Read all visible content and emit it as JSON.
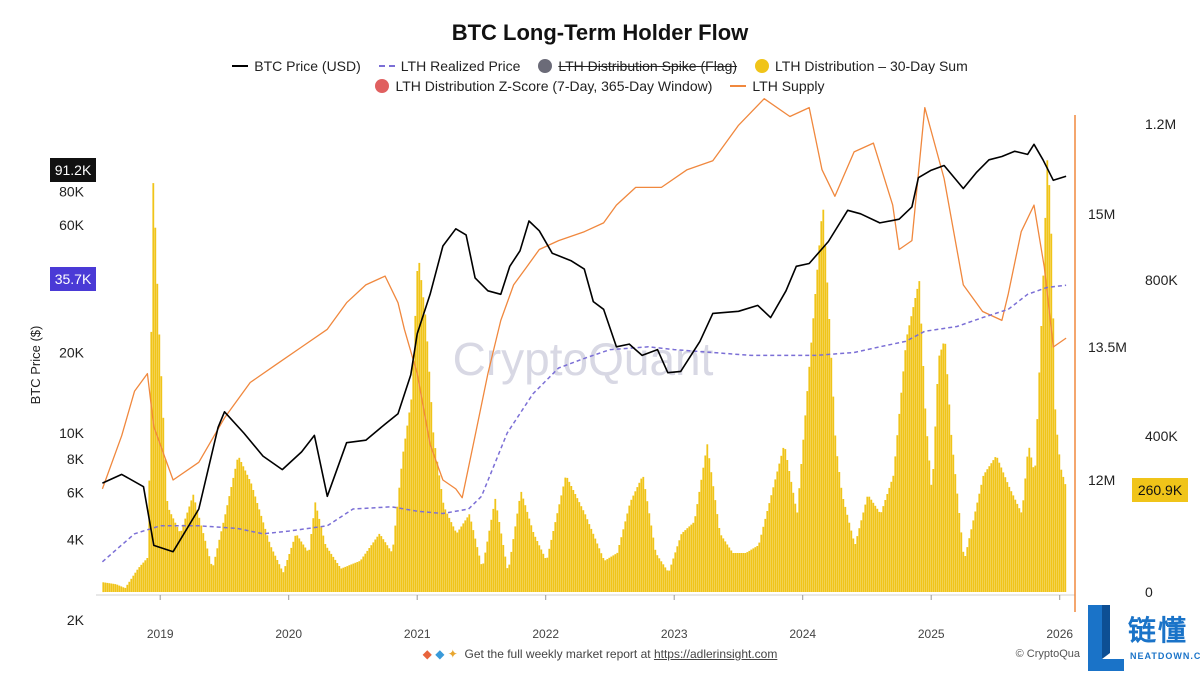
{
  "chart_data": {
    "type": "line",
    "title": "BTC Long-Term Holder Flow",
    "ylabel": "BTC Price ($)",
    "x_ticks": [
      "2019",
      "2020",
      "2021",
      "2022",
      "2023",
      "2024",
      "2025",
      "2026"
    ],
    "y_left_ticks": [
      "2K",
      "4K",
      "6K",
      "8K",
      "10K",
      "20K",
      "40K",
      "60K",
      "80K",
      "100K"
    ],
    "y_left_scale": "log",
    "y_left_range": [
      2000,
      130000
    ],
    "y_right_supply_ticks": [
      "12M",
      "13.5M",
      "15M"
    ],
    "y_right_supply_range": [
      11500000,
      16500000
    ],
    "y_right_flow_ticks": [
      "0",
      "400K",
      "800K",
      "1.2M"
    ],
    "y_right_flow_range": [
      0,
      1200000
    ],
    "x_range": [
      2018.5,
      2026.08
    ],
    "badges": {
      "price": "91.2K",
      "realized": "35.7K",
      "flow": "260.9K"
    },
    "watermark": "CryptoQuant",
    "legend": [
      {
        "label": "BTC Price (USD)",
        "style": "line",
        "color": "#000000",
        "struck": false
      },
      {
        "label": "LTH Realized Price",
        "style": "dashed",
        "color": "#7b6fd6",
        "struck": false
      },
      {
        "label": "LTH Distribution Spike (Flag)",
        "style": "dot",
        "color": "#6b6b78",
        "struck": true
      },
      {
        "label": "LTH Distribution – 30-Day Sum",
        "style": "dot",
        "color": "#f0c419",
        "struck": false
      },
      {
        "label": "LTH Distribution Z-Score (7-Day, 365-Day Window)",
        "style": "dot",
        "color": "#e06060",
        "struck": false
      },
      {
        "label": "LTH Supply",
        "style": "line",
        "color": "#f0883e",
        "struck": false
      }
    ],
    "series": [
      {
        "name": "BTC Price (USD)",
        "axis": "left",
        "color": "#000000",
        "x": [
          2018.55,
          2018.7,
          2018.87,
          2018.95,
          2019.1,
          2019.3,
          2019.45,
          2019.5,
          2019.65,
          2019.8,
          2019.95,
          2020.1,
          2020.2,
          2020.3,
          2020.45,
          2020.6,
          2020.75,
          2020.85,
          2020.95,
          2021.0,
          2021.1,
          2021.2,
          2021.3,
          2021.38,
          2021.45,
          2021.55,
          2021.65,
          2021.72,
          2021.8,
          2021.87,
          2021.95,
          2022.05,
          2022.2,
          2022.3,
          2022.37,
          2022.45,
          2022.55,
          2022.65,
          2022.75,
          2022.87,
          2022.95,
          2023.05,
          2023.2,
          2023.3,
          2023.5,
          2023.65,
          2023.75,
          2023.87,
          2023.95,
          2024.05,
          2024.2,
          2024.35,
          2024.45,
          2024.6,
          2024.75,
          2024.85,
          2024.9,
          2025.0,
          2025.1,
          2025.25,
          2025.35,
          2025.45,
          2025.55,
          2025.65,
          2025.75,
          2025.8,
          2025.87,
          2025.95,
          2026.05
        ],
        "values": [
          6500,
          7000,
          6300,
          3800,
          3600,
          5200,
          10500,
          12000,
          10000,
          8200,
          7300,
          8500,
          9800,
          5800,
          9200,
          9400,
          10800,
          11800,
          16500,
          23500,
          33000,
          50000,
          58000,
          55000,
          38000,
          34000,
          33000,
          42000,
          48000,
          62000,
          57000,
          47000,
          44000,
          41000,
          31000,
          29000,
          21000,
          21500,
          19500,
          20500,
          16800,
          17000,
          22000,
          28000,
          28500,
          30000,
          27000,
          34000,
          42000,
          43000,
          52000,
          68000,
          66000,
          61000,
          63000,
          70000,
          90000,
          96000,
          100000,
          82000,
          94000,
          105000,
          108000,
          113000,
          110000,
          120000,
          105000,
          88000,
          91200
        ]
      },
      {
        "name": "LTH Realized Price",
        "axis": "left",
        "color": "#7b6fd6",
        "x": [
          2018.55,
          2018.8,
          2019.0,
          2019.3,
          2019.6,
          2019.8,
          2020.0,
          2020.3,
          2020.5,
          2020.8,
          2021.0,
          2021.2,
          2021.4,
          2021.5,
          2021.7,
          2021.9,
          2022.1,
          2022.3,
          2022.5,
          2022.8,
          2023.0,
          2023.3,
          2023.6,
          2023.9,
          2024.1,
          2024.4,
          2024.6,
          2024.8,
          2024.95,
          2025.2,
          2025.4,
          2025.6,
          2025.75,
          2025.9,
          2026.05
        ],
        "values": [
          3300,
          4200,
          4500,
          4500,
          4400,
          4200,
          4300,
          4500,
          5200,
          5300,
          5100,
          5000,
          5200,
          5800,
          10000,
          14000,
          17500,
          19000,
          20500,
          21000,
          20500,
          20000,
          19500,
          19500,
          19500,
          20000,
          21000,
          22000,
          24000,
          25000,
          27000,
          29000,
          33000,
          35000,
          35700
        ]
      },
      {
        "name": "LTH Supply",
        "axis": "right_supply",
        "color": "#f0883e",
        "x": [
          2018.55,
          2018.7,
          2018.8,
          2018.9,
          2018.95,
          2019.1,
          2019.3,
          2019.5,
          2019.7,
          2019.9,
          2020.1,
          2020.3,
          2020.45,
          2020.6,
          2020.75,
          2020.85,
          2020.9,
          2021.0,
          2021.1,
          2021.2,
          2021.3,
          2021.35,
          2021.45,
          2021.55,
          2021.65,
          2021.75,
          2021.85,
          2021.95,
          2022.1,
          2022.3,
          2022.45,
          2022.55,
          2022.7,
          2022.9,
          2023.1,
          2023.3,
          2023.5,
          2023.7,
          2023.9,
          2024.05,
          2024.15,
          2024.25,
          2024.4,
          2024.55,
          2024.7,
          2024.75,
          2024.85,
          2024.95,
          2025.1,
          2025.25,
          2025.4,
          2025.55,
          2025.6,
          2025.7,
          2025.8,
          2025.88,
          2025.95,
          2026.05
        ],
        "values": [
          11900,
          12500,
          13000,
          13200,
          12600,
          12000,
          12200,
          12700,
          13100,
          13300,
          13500,
          13700,
          14000,
          14200,
          14300,
          14000,
          13700,
          13200,
          12400,
          12000,
          11900,
          11800,
          12500,
          13200,
          13800,
          14200,
          14400,
          14600,
          14700,
          14800,
          14900,
          15100,
          15300,
          15300,
          15500,
          15600,
          16000,
          16300,
          16100,
          16200,
          15500,
          15200,
          15700,
          15800,
          15100,
          14600,
          14700,
          16200,
          15400,
          14200,
          13900,
          13800,
          14100,
          14800,
          15100,
          14400,
          13500,
          13600
        ]
      },
      {
        "name": "LTH Distribution – 30-Day Sum",
        "axis": "right_flow",
        "color": "#f0c419",
        "style": "area",
        "x": [
          2018.55,
          2018.65,
          2018.72,
          2018.82,
          2018.9,
          2018.94,
          2018.98,
          2019.05,
          2019.15,
          2019.25,
          2019.4,
          2019.5,
          2019.6,
          2019.7,
          2019.85,
          2019.95,
          2020.05,
          2020.15,
          2020.2,
          2020.28,
          2020.4,
          2020.55,
          2020.7,
          2020.8,
          2020.88,
          2020.95,
          2021.0,
          2021.06,
          2021.12,
          2021.2,
          2021.3,
          2021.4,
          2021.5,
          2021.6,
          2021.7,
          2021.8,
          2021.9,
          2022.0,
          2022.15,
          2022.3,
          2022.45,
          2022.55,
          2022.65,
          2022.75,
          2022.85,
          2022.95,
          2023.05,
          2023.15,
          2023.25,
          2023.35,
          2023.45,
          2023.55,
          2023.65,
          2023.75,
          2023.85,
          2023.95,
          2024.05,
          2024.1,
          2024.15,
          2024.2,
          2024.25,
          2024.3,
          2024.4,
          2024.5,
          2024.6,
          2024.7,
          2024.8,
          2024.9,
          2024.95,
          2025.0,
          2025.05,
          2025.1,
          2025.15,
          2025.25,
          2025.4,
          2025.5,
          2025.6,
          2025.7,
          2025.75,
          2025.8,
          2025.86,
          2025.9,
          2025.93,
          2025.96,
          2026.0,
          2026.05
        ],
        "values": [
          25000,
          20000,
          10000,
          60000,
          90000,
          1070000,
          700000,
          220000,
          150000,
          250000,
          60000,
          200000,
          350000,
          280000,
          120000,
          50000,
          150000,
          100000,
          230000,
          120000,
          60000,
          80000,
          150000,
          100000,
          350000,
          500000,
          870000,
          700000,
          400000,
          220000,
          150000,
          200000,
          60000,
          240000,
          50000,
          260000,
          150000,
          80000,
          300000,
          200000,
          80000,
          100000,
          230000,
          300000,
          100000,
          50000,
          150000,
          180000,
          380000,
          150000,
          100000,
          100000,
          120000,
          250000,
          380000,
          200000,
          600000,
          800000,
          1000000,
          700000,
          380000,
          250000,
          120000,
          250000,
          200000,
          300000,
          650000,
          800000,
          450000,
          250000,
          600000,
          650000,
          400000,
          80000,
          300000,
          350000,
          270000,
          200000,
          380000,
          300000,
          760000,
          1140000,
          900000,
          450000,
          320000,
          260900
        ]
      }
    ]
  },
  "footer": {
    "text": "Get the full weekly market report at",
    "link": "https://adlerinsight.com",
    "copyright": "© CryptoQua"
  },
  "brand": {
    "glyphs": "链懂",
    "sub": "NEATDOWN.COM"
  }
}
